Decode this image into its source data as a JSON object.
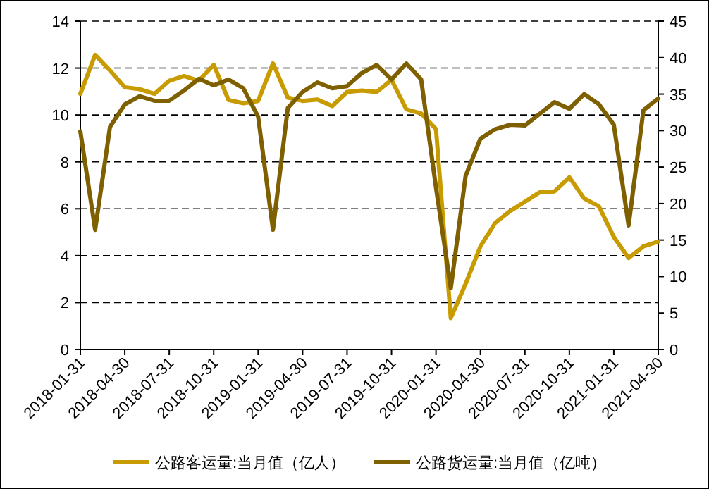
{
  "chart_data": {
    "type": "line",
    "categories": [
      "2018-01-31",
      null,
      null,
      "2018-04-30",
      null,
      null,
      "2018-07-31",
      null,
      null,
      "2018-10-31",
      null,
      null,
      "2019-01-31",
      null,
      null,
      "2019-04-30",
      null,
      null,
      "2019-07-31",
      null,
      null,
      "2019-10-31",
      null,
      null,
      "2020-01-31",
      null,
      null,
      "2020-04-30",
      null,
      null,
      "2020-07-31",
      null,
      null,
      "2020-10-31",
      null,
      null,
      "2021-01-31",
      null,
      null,
      "2021-04-30"
    ],
    "series": [
      {
        "name": "公路客运量:当月值（亿人）",
        "color": "#c89b00",
        "values": [
          10.9,
          12.56,
          11.9,
          11.18,
          11.1,
          10.9,
          11.46,
          11.66,
          11.46,
          12.14,
          10.64,
          10.5,
          10.6,
          12.2,
          10.74,
          10.6,
          10.66,
          10.38,
          10.98,
          11.04,
          10.98,
          11.5,
          10.24,
          10.06,
          9.4,
          1.34,
          2.8,
          4.4,
          5.4,
          5.9,
          6.3,
          6.7,
          6.74,
          7.34,
          6.44,
          6.1,
          4.8,
          3.9,
          4.4,
          4.6
        ]
      },
      {
        "name": "公路货运量:当月值（亿吨）",
        "color": "#7f6000",
        "axis": "y2",
        "values": [
          29.9,
          16.4,
          30.5,
          33.6,
          34.7,
          34.1,
          34.1,
          35.5,
          37.1,
          36.2,
          37.0,
          35.8,
          31.9,
          16.4,
          33.1,
          35.3,
          36.6,
          35.8,
          36.1,
          37.9,
          39.0,
          37.0,
          39.2,
          37.0,
          22.2,
          8.4,
          23.8,
          28.9,
          30.2,
          30.8,
          30.7,
          32.3,
          33.9,
          33.0,
          35.0,
          33.6,
          30.8,
          17.0,
          32.8,
          34.4
        ]
      }
    ],
    "ylim": [
      0,
      14
    ],
    "yticks": [
      0,
      2,
      4,
      6,
      8,
      10,
      12,
      14
    ],
    "y2lim": [
      0,
      45
    ],
    "y2ticks": [
      0,
      5,
      10,
      15,
      20,
      25,
      30,
      35,
      40,
      45
    ],
    "grid": "y",
    "legend": "bottom",
    "line_style": "solid",
    "marker": "none"
  }
}
